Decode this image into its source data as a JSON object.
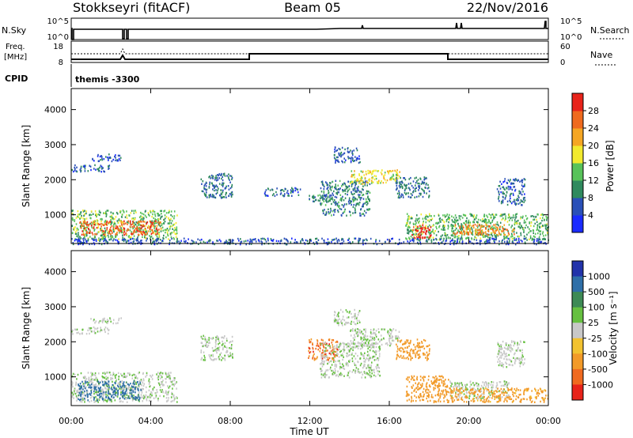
{
  "header": {
    "station": "Stokkseyri (fitACF)",
    "beam": "Beam 05",
    "date": "22/Nov/2016"
  },
  "status_panel": {
    "nsky_label": "N.Sky",
    "nsky_ticks": [
      "10^5",
      "10^0"
    ],
    "nsearch_label": "N.Search",
    "nsearch_ticks": [
      "10^5",
      "10^0"
    ],
    "freq_label_1": "Freq.",
    "freq_label_2": "[MHz]",
    "freq_ticks": [
      "18",
      "8"
    ],
    "nave_label": "Nave",
    "nave_ticks": [
      "60",
      "0"
    ],
    "cpid_label": "CPID",
    "cpid_value": "themis -3300"
  },
  "colors": {
    "power_scale": [
      "#1a2bff",
      "#2a50b8",
      "#2f8a5e",
      "#58c25a",
      "#f2ea2e",
      "#f5a623",
      "#ef6a1e",
      "#e8231a"
    ],
    "velocity_scale": [
      "#2233aa",
      "#2f6fa8",
      "#3d8a55",
      "#66c040",
      "#c8c8c8",
      "#f2c230",
      "#f29a28",
      "#f06a20",
      "#e8231a"
    ],
    "velocity_gray": "#c8c8c8"
  },
  "chart_data": [
    {
      "type": "heatmap",
      "title": "",
      "xlabel": "",
      "ylabel": "Slant Range [km]",
      "xlim": [
        "00:00",
        "24:00"
      ],
      "ylim": [
        180,
        4600
      ],
      "yticks": [
        "1000",
        "2000",
        "3000",
        "4000"
      ],
      "colorbar_label": "Power [dB]",
      "colorbar_ticks": [
        "4",
        "8",
        "12",
        "16",
        "20",
        "24",
        "28"
      ],
      "colorbar_range": [
        0,
        32
      ],
      "series": [
        {
          "t0": 0.0,
          "t1": 5.3,
          "r0": 300,
          "r1": 1150,
          "value": 14
        },
        {
          "t0": 0.4,
          "t1": 4.5,
          "r0": 450,
          "r1": 850,
          "value": 27
        },
        {
          "t0": 0.0,
          "t1": 1.9,
          "r0": 2250,
          "r1": 2450,
          "value": 6
        },
        {
          "t0": 0.9,
          "t1": 2.5,
          "r0": 2550,
          "r1": 2750,
          "value": 6
        },
        {
          "t0": 6.5,
          "t1": 8.1,
          "r0": 1500,
          "r1": 2200,
          "value": 8
        },
        {
          "t0": 9.7,
          "t1": 11.5,
          "r0": 1550,
          "r1": 1800,
          "value": 7
        },
        {
          "t0": 11.9,
          "t1": 13.4,
          "r0": 1400,
          "r1": 1600,
          "value": 9
        },
        {
          "t0": 12.5,
          "t1": 15.0,
          "r0": 1000,
          "r1": 2000,
          "value": 9
        },
        {
          "t0": 13.2,
          "t1": 14.5,
          "r0": 2500,
          "r1": 2950,
          "value": 7
        },
        {
          "t0": 14.0,
          "t1": 16.5,
          "r0": 1900,
          "r1": 2300,
          "value": 18
        },
        {
          "t0": 16.3,
          "t1": 18.0,
          "r0": 1500,
          "r1": 2100,
          "value": 8
        },
        {
          "t0": 16.8,
          "t1": 18.8,
          "r0": 300,
          "r1": 1050,
          "value": 14
        },
        {
          "t0": 17.1,
          "t1": 18.1,
          "r0": 350,
          "r1": 750,
          "value": 30
        },
        {
          "t0": 18.8,
          "t1": 24.0,
          "r0": 300,
          "r1": 1050,
          "value": 13
        },
        {
          "t0": 19.2,
          "t1": 22.3,
          "r0": 450,
          "r1": 750,
          "value": 24
        },
        {
          "t0": 21.4,
          "t1": 22.8,
          "r0": 1300,
          "r1": 2050,
          "value": 7
        },
        {
          "t0": 0.0,
          "t1": 24.0,
          "r0": 180,
          "r1": 350,
          "value": 6
        }
      ]
    },
    {
      "type": "heatmap",
      "title": "",
      "xlabel": "Time UT",
      "ylabel": "Slant Range [km]",
      "xticks": [
        "00:00",
        "04:00",
        "08:00",
        "12:00",
        "16:00",
        "20:00",
        "00:00"
      ],
      "xlim": [
        "00:00",
        "24:00"
      ],
      "ylim": [
        180,
        4600
      ],
      "yticks": [
        "1000",
        "2000",
        "3000",
        "4000"
      ],
      "colorbar_label": "Velocity [m s⁻¹]",
      "colorbar_ticks": [
        "1000",
        "500",
        "100",
        "25",
        "-25",
        "-100",
        "-500",
        "-1000"
      ],
      "series": [
        {
          "t0": 0.0,
          "t1": 5.3,
          "r0": 300,
          "r1": 1150,
          "value": 0
        },
        {
          "t0": 0.3,
          "t1": 3.5,
          "r0": 350,
          "r1": 900,
          "value": 150
        },
        {
          "t0": 0.0,
          "t1": 1.9,
          "r0": 2250,
          "r1": 2450,
          "value": 0
        },
        {
          "t0": 0.9,
          "t1": 2.5,
          "r0": 2550,
          "r1": 2700,
          "value": 0
        },
        {
          "t0": 6.5,
          "t1": 8.1,
          "r0": 1500,
          "r1": 2200,
          "value": 0
        },
        {
          "t0": 11.9,
          "t1": 13.4,
          "r0": 1500,
          "r1": 2100,
          "value": -600
        },
        {
          "t0": 12.5,
          "t1": 15.5,
          "r0": 1000,
          "r1": 2000,
          "value": 0
        },
        {
          "t0": 13.2,
          "t1": 14.5,
          "r0": 2500,
          "r1": 2950,
          "value": 0
        },
        {
          "t0": 14.0,
          "t1": 16.5,
          "r0": 1900,
          "r1": 2400,
          "value": 0
        },
        {
          "t0": 16.3,
          "t1": 18.0,
          "r0": 1500,
          "r1": 2100,
          "value": -300
        },
        {
          "t0": 16.8,
          "t1": 19.0,
          "r0": 300,
          "r1": 1050,
          "value": -200
        },
        {
          "t0": 19.0,
          "t1": 22.0,
          "r0": 400,
          "r1": 900,
          "value": 0
        },
        {
          "t0": 19.0,
          "t1": 24.0,
          "r0": 300,
          "r1": 700,
          "value": -150
        },
        {
          "t0": 21.4,
          "t1": 22.8,
          "r0": 1300,
          "r1": 2050,
          "value": 0
        }
      ]
    }
  ]
}
